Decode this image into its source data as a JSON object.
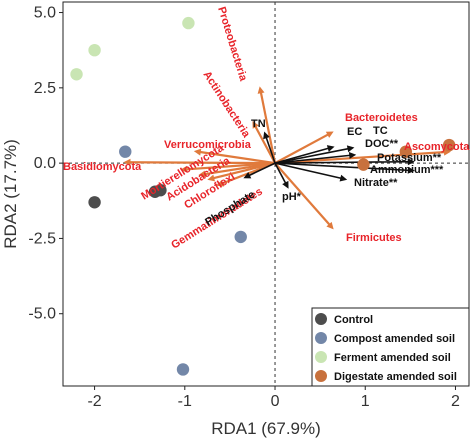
{
  "chart_data": {
    "type": "scatter",
    "xlabel": "RDA1 (67.9%)",
    "ylabel": "RDA2 (17.7%)",
    "xlim": [
      -2.35,
      2.15
    ],
    "ylim": [
      -7.4,
      5.35
    ],
    "x_ticks": [
      {
        "value": -2,
        "label": "-2"
      },
      {
        "value": -1,
        "label": "-1"
      },
      {
        "value": 0,
        "label": "0"
      },
      {
        "value": 1,
        "label": "1"
      },
      {
        "value": 2,
        "label": "2"
      }
    ],
    "y_ticks": [
      {
        "value": 5.0,
        "label": "5.0"
      },
      {
        "value": 2.5,
        "label": "2.5"
      },
      {
        "value": 0.0,
        "label": "0.0"
      },
      {
        "value": -2.5,
        "label": "-2.5"
      },
      {
        "value": -5.0,
        "label": "-5.0"
      }
    ],
    "grid": false,
    "reference_lines": {
      "x": 0,
      "y": 0,
      "style": "dashed"
    },
    "legend_position": "bottom-right",
    "series": [
      {
        "name": "Control",
        "color": "#4d4d4d",
        "points": [
          [
            -2.0,
            -1.3
          ],
          [
            -1.33,
            -0.95
          ],
          [
            -1.27,
            -0.9
          ]
        ]
      },
      {
        "name": "Compost amended soil",
        "color": "#7387a8",
        "points": [
          [
            -1.66,
            0.38
          ],
          [
            -0.38,
            -2.45
          ],
          [
            -1.02,
            -6.85
          ]
        ]
      },
      {
        "name": "Ferment amended soil",
        "color": "#c9e5b3",
        "points": [
          [
            -2.2,
            2.95
          ],
          [
            -2.0,
            3.75
          ],
          [
            -0.96,
            4.65
          ]
        ]
      },
      {
        "name": "Digestate amended soil",
        "color": "#c8713d",
        "points": [
          [
            0.98,
            -0.05
          ],
          [
            1.45,
            0.38
          ],
          [
            1.93,
            0.6
          ]
        ]
      }
    ],
    "taxa_vectors": {
      "color": "#e07a3c",
      "label_color": "#e8242a",
      "items": [
        {
          "label": "Proteobacteria",
          "x": -0.17,
          "y": 2.55
        },
        {
          "label": "Actinobacteria",
          "x": -0.25,
          "y": 1.4
        },
        {
          "label": "Verrucomicrobia",
          "x": -0.9,
          "y": 0.4
        },
        {
          "label": "Basidiomycota",
          "x": -1.68,
          "y": 0.03
        },
        {
          "label": "Mortierellomycota",
          "x": -1.05,
          "y": -0.22
        },
        {
          "label": "Acidobacteria",
          "x": -0.85,
          "y": -0.4
        },
        {
          "label": "Chloroflexi",
          "x": -0.75,
          "y": -0.55
        },
        {
          "label": "Gemmatimonadetes",
          "x": -0.65,
          "y": -0.75
        },
        {
          "label": "Bacteroidetes",
          "x": 0.65,
          "y": 1.05
        },
        {
          "label": "Ascomycota",
          "x": 1.95,
          "y": 0.38
        },
        {
          "label": "Firmicutes",
          "x": 0.65,
          "y": -2.2
        }
      ]
    },
    "environment_vectors": {
      "color": "#111111",
      "items": [
        {
          "label": "TN",
          "x": -0.12,
          "y": 1.05
        },
        {
          "label": "EC",
          "x": 0.66,
          "y": 0.55
        },
        {
          "label": "TC",
          "x": 0.88,
          "y": 0.52
        },
        {
          "label": "DOC**",
          "x": 0.9,
          "y": 0.28
        },
        {
          "label": "Potassium**",
          "x": 1.55,
          "y": 0.05
        },
        {
          "label": "Ammonium***",
          "x": 1.55,
          "y": -0.25
        },
        {
          "label": "Nitrate**",
          "x": 0.8,
          "y": -0.55
        },
        {
          "label": "pH*",
          "x": 0.15,
          "y": -0.85
        },
        {
          "label": "Phosphate",
          "x": -0.35,
          "y": -0.5
        }
      ]
    }
  }
}
